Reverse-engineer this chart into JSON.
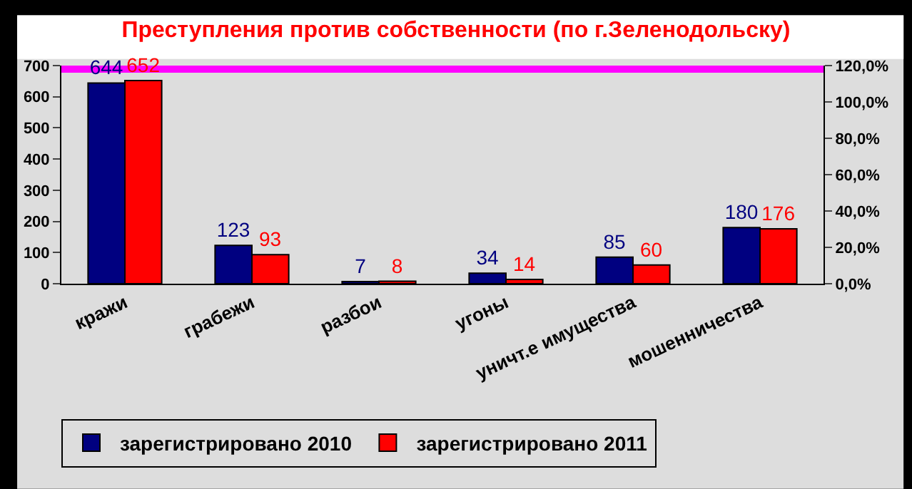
{
  "chart_data": {
    "type": "bar",
    "title": "Преступления против собственности (по г.Зеленодольску)",
    "categories": [
      "кражи",
      "грабежи",
      "разбои",
      "угоны",
      "уничт.е имущества",
      "мошенничества"
    ],
    "series": [
      {
        "name": "зарегистрировано 2010",
        "color": "#000080",
        "values": [
          644,
          123,
          7,
          34,
          85,
          180
        ]
      },
      {
        "name": "зарегистрировано 2011",
        "color": "#ff0000",
        "values": [
          652,
          93,
          8,
          14,
          60,
          176
        ]
      }
    ],
    "ylim": [
      0,
      700
    ],
    "yticks": [
      0,
      100,
      200,
      300,
      400,
      500,
      600,
      700
    ],
    "y2lim": [
      0,
      120
    ],
    "y2ticks": [
      {
        "value": 0,
        "label": "0,0%"
      },
      {
        "value": 20,
        "label": "20,0%"
      },
      {
        "value": 40,
        "label": "40,0%"
      },
      {
        "value": 60,
        "label": "60,0%"
      },
      {
        "value": 80,
        "label": "80,0%"
      },
      {
        "value": 100,
        "label": "100,0%"
      },
      {
        "value": 120,
        "label": "120,0%"
      }
    ],
    "ref_lines": [
      {
        "axis": "y2",
        "value": 118,
        "color": "#ff00ff"
      }
    ],
    "data_labels": true,
    "legend": "bottom",
    "grid": false
  }
}
